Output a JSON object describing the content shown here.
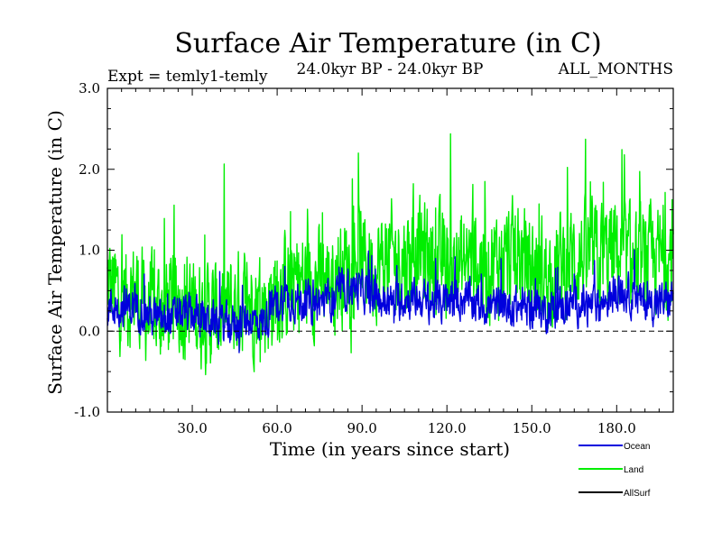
{
  "chart_data": {
    "type": "line",
    "title": "Surface Air Temperature (in C)",
    "subtitle_left": "Expt = temly1-temly",
    "subtitle_center": "24.0kyr BP - 24.0kyr BP",
    "subtitle_right": "ALL_MONTHS",
    "xlabel": "Time (in years since start)",
    "ylabel": "Surface Air Temperature (in C)",
    "xlim": [
      0,
      200
    ],
    "ylim": [
      -1.0,
      3.0
    ],
    "xticks": [
      30,
      60,
      90,
      120,
      150,
      180
    ],
    "xtick_labels": [
      "30.0",
      "60.0",
      "90.0",
      "120.0",
      "150.0",
      "180.0"
    ],
    "yticks": [
      -1,
      0,
      1,
      2,
      3
    ],
    "ytick_labels": [
      "-1.0",
      "0.0",
      "1.0",
      "2.0",
      "3.0"
    ],
    "zero_line": true,
    "legend_position": "bottom-right",
    "series_order": [
      "Land",
      "Ocean",
      "AllSurf"
    ],
    "series": [
      {
        "name": "Land",
        "color": "#00ee00",
        "x": [
          0,
          5,
          10,
          15,
          20,
          25,
          30,
          35,
          40,
          45,
          50,
          55,
          60,
          65,
          70,
          75,
          80,
          85,
          90,
          95,
          100,
          105,
          110,
          115,
          120,
          125,
          130,
          135,
          140,
          145,
          150,
          155,
          160,
          165,
          170,
          175,
          180,
          185,
          190,
          195,
          200
        ],
        "values": [
          0.6,
          0.4,
          0.5,
          0.2,
          0.3,
          0.4,
          0.3,
          0.2,
          0.2,
          0.3,
          0.4,
          0.3,
          0.5,
          0.6,
          0.6,
          0.6,
          0.7,
          0.8,
          0.9,
          0.8,
          0.9,
          0.9,
          1.0,
          0.9,
          0.8,
          0.8,
          0.9,
          0.8,
          0.9,
          0.9,
          0.8,
          0.7,
          0.8,
          0.9,
          0.9,
          0.9,
          1.0,
          0.8,
          0.8,
          0.9,
          0.9
        ],
        "spread": 0.8
      },
      {
        "name": "Ocean",
        "color": "#0000dd",
        "x": [
          0,
          5,
          10,
          15,
          20,
          25,
          30,
          35,
          40,
          45,
          50,
          55,
          60,
          65,
          70,
          75,
          80,
          85,
          90,
          95,
          100,
          105,
          110,
          115,
          120,
          125,
          130,
          135,
          140,
          145,
          150,
          155,
          160,
          165,
          170,
          175,
          180,
          185,
          190,
          195,
          200
        ],
        "values": [
          0.3,
          0.3,
          0.3,
          0.2,
          0.1,
          0.2,
          0.2,
          0.15,
          0.1,
          0.1,
          0.15,
          0.1,
          0.35,
          0.4,
          0.35,
          0.35,
          0.4,
          0.55,
          0.5,
          0.4,
          0.35,
          0.4,
          0.4,
          0.35,
          0.35,
          0.4,
          0.35,
          0.3,
          0.3,
          0.3,
          0.3,
          0.25,
          0.3,
          0.35,
          0.3,
          0.35,
          0.5,
          0.45,
          0.35,
          0.35,
          0.4
        ],
        "spread": 0.3
      }
    ],
    "legend": [
      {
        "name": "Ocean",
        "color": "#0000dd"
      },
      {
        "name": "Land",
        "color": "#00ee00"
      },
      {
        "name": "AllSurf",
        "color": "#000000"
      }
    ]
  }
}
